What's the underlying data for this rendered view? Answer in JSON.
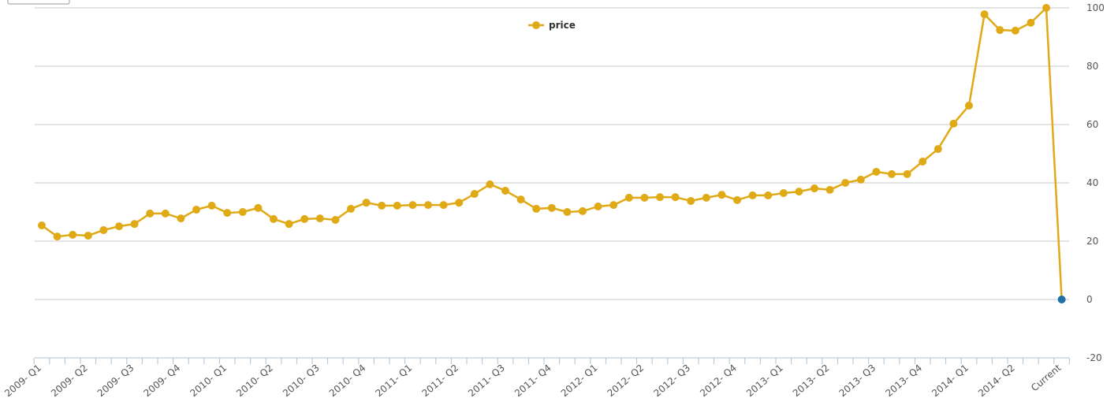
{
  "chart_data": {
    "type": "line",
    "categories": [
      "2009- Q1",
      null,
      null,
      "2009- Q2",
      null,
      null,
      "2009- Q3",
      null,
      null,
      "2009- Q4",
      null,
      null,
      "2010- Q1",
      null,
      null,
      "2010- Q2",
      null,
      null,
      "2010- Q3",
      null,
      null,
      "2010- Q4",
      null,
      null,
      "2011- Q1",
      null,
      null,
      "2011- Q2",
      null,
      null,
      "2011- Q3",
      null,
      null,
      "2011- Q4",
      null,
      null,
      "2012- Q1",
      null,
      null,
      "2012- Q2",
      null,
      null,
      "2012- Q3",
      null,
      null,
      "2012- Q4",
      null,
      null,
      "2013- Q1",
      null,
      null,
      "2013- Q2",
      null,
      null,
      "2013- Q3",
      null,
      null,
      "2013- Q4",
      null,
      null,
      "2014- Q1",
      null,
      null,
      "2014- Q2",
      null,
      null,
      "Current"
    ],
    "series": [
      {
        "name": "price",
        "color": "#e0a916",
        "values": [
          25.4,
          21.6,
          22.2,
          21.9,
          23.8,
          25.1,
          25.9,
          29.5,
          29.5,
          27.8,
          30.8,
          32.2,
          29.7,
          30,
          31.4,
          27.6,
          25.9,
          27.6,
          27.8,
          27.3,
          31.1,
          33.2,
          32.2,
          32.2,
          32.4,
          32.4,
          32.4,
          33.2,
          36.2,
          39.5,
          37.3,
          34.3,
          31.1,
          31.4,
          30,
          30.3,
          31.9,
          32.4,
          34.9,
          34.9,
          35.1,
          35.1,
          33.8,
          34.9,
          35.9,
          34.1,
          35.7,
          35.7,
          36.5,
          37,
          38.1,
          37.6,
          40,
          41.1,
          43.8,
          43,
          43,
          47.3,
          51.6,
          60.3,
          66.5,
          97.8,
          92.4,
          92.2,
          94.9,
          100,
          0
        ],
        "marker_colors": [
          "#e0a916",
          "#e0a916",
          "#e0a916",
          "#e0a916",
          "#e0a916",
          "#e0a916",
          "#e0a916",
          "#e0a916",
          "#e0a916",
          "#e0a916",
          "#e0a916",
          "#e0a916",
          "#e0a916",
          "#e0a916",
          "#e0a916",
          "#e0a916",
          "#e0a916",
          "#e0a916",
          "#e0a916",
          "#e0a916",
          "#e0a916",
          "#e0a916",
          "#e0a916",
          "#e0a916",
          "#e0a916",
          "#e0a916",
          "#e0a916",
          "#e0a916",
          "#e0a916",
          "#e0a916",
          "#e0a916",
          "#e0a916",
          "#e0a916",
          "#e0a916",
          "#e0a916",
          "#e0a916",
          "#e0a916",
          "#e0a916",
          "#e0a916",
          "#e0a916",
          "#e0a916",
          "#e0a916",
          "#e0a916",
          "#e0a916",
          "#e0a916",
          "#e0a916",
          "#e0a916",
          "#e0a916",
          "#e0a916",
          "#e0a916",
          "#e0a916",
          "#e0a916",
          "#e0a916",
          "#e0a916",
          "#e0a916",
          "#e0a916",
          "#e0a916",
          "#e0a916",
          "#e0a916",
          "#e0a916",
          "#e0a916",
          "#e0a916",
          "#e0a916",
          "#e0a916",
          "#e0a916",
          "#e0a916",
          "#1f6fa8"
        ]
      }
    ],
    "ylim": [
      -20,
      100
    ],
    "yticks": [
      -20,
      0,
      20,
      40,
      60,
      80,
      100
    ],
    "grid": true,
    "legend": "top"
  }
}
